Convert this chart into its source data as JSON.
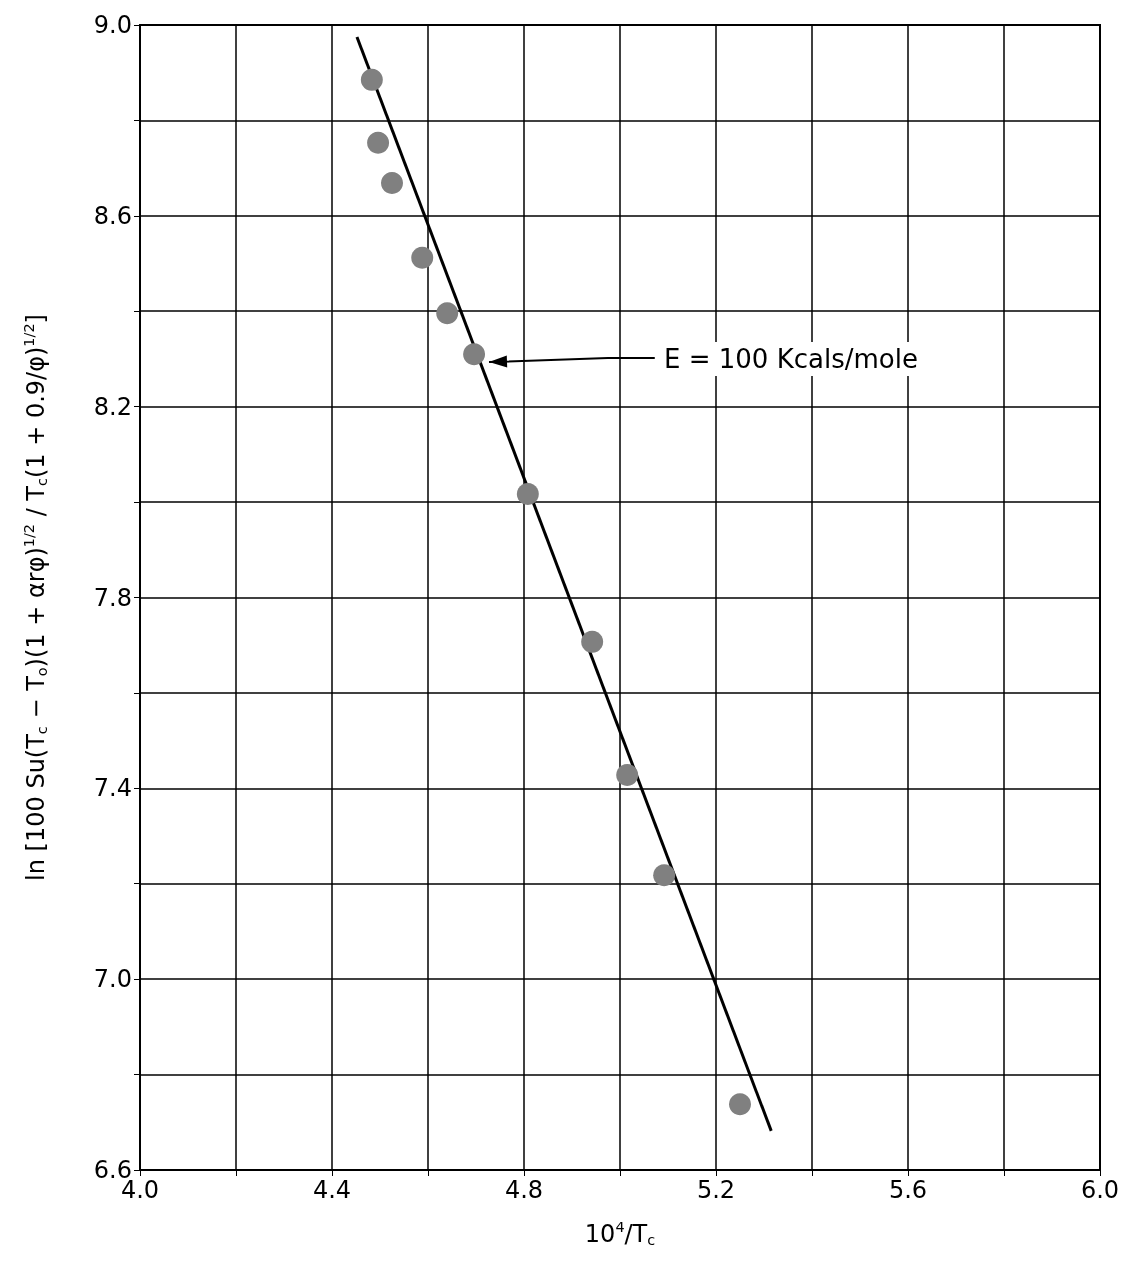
{
  "chart_data": {
    "type": "scatter",
    "xlabel": "10$^{4}$/T$_{c}$",
    "ylabel": "ln [100 Su(T$_{c}$ − T$_{o}$)(1 + αrφ)$^{1/2}$ / T$_{c}$(1 + 0.9/φ)$^{1/2}$]",
    "series": [
      {
        "color": "#808080",
        "x": [
          4.483,
          4.496,
          4.525,
          4.588,
          4.64,
          4.696,
          4.808,
          4.942,
          5.015,
          5.092,
          5.25
        ],
        "values": [
          8.885,
          8.753,
          8.669,
          8.512,
          8.396,
          8.31,
          8.017,
          7.707,
          7.428,
          7.218,
          6.738
        ]
      },
      {
        "type": "line",
        "marker": "none",
        "color": "#000000",
        "x": [
          4.452,
          5.315
        ],
        "values": [
          8.975,
          6.682
        ]
      }
    ],
    "annotations": [
      "E = 100 Kcals/mole"
    ],
    "xlim": [
      4.0,
      6.0
    ],
    "xticks": [
      {
        "value": 4.0,
        "label": "4.0"
      },
      {
        "value": 4.2,
        "label": null
      },
      {
        "value": 4.4,
        "label": "4.4"
      },
      {
        "value": 4.6,
        "label": null
      },
      {
        "value": 4.8,
        "label": "4.8"
      },
      {
        "value": 5.0,
        "label": null
      },
      {
        "value": 5.2,
        "label": "5.2"
      },
      {
        "value": 5.4,
        "label": null
      },
      {
        "value": 5.6,
        "label": "5.6"
      },
      {
        "value": 5.8,
        "label": null
      },
      {
        "value": 6.0,
        "label": "6.0"
      }
    ],
    "ylim": [
      6.6,
      9.0
    ],
    "yticks": [
      {
        "value": 6.6,
        "label": "6.6"
      },
      {
        "value": 6.8,
        "label": null
      },
      {
        "value": 7.0,
        "label": "7.0"
      },
      {
        "value": 7.2,
        "label": null
      },
      {
        "value": 7.4,
        "label": "7.4"
      },
      {
        "value": 7.6,
        "label": null
      },
      {
        "value": 7.8,
        "label": "7.8"
      },
      {
        "value": 8.0,
        "label": null
      },
      {
        "value": 8.2,
        "label": "8.2"
      },
      {
        "value": 8.4,
        "label": null
      },
      {
        "value": 8.6,
        "label": "8.6"
      },
      {
        "value": 8.8,
        "label": null
      },
      {
        "value": 9.0,
        "label": "9.0"
      }
    ],
    "grid": true,
    "marker": "circle"
  }
}
